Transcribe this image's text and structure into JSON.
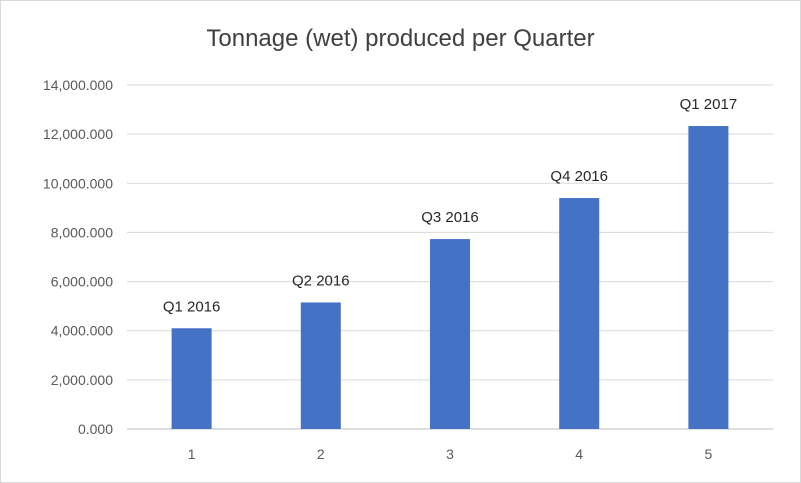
{
  "chart_data": {
    "type": "bar",
    "title": "Tonnage (wet) produced per Quarter",
    "xlabel": "",
    "ylabel": "",
    "categories": [
      "1",
      "2",
      "3",
      "4",
      "5"
    ],
    "values": [
      4100,
      5150,
      7730,
      9400,
      12330
    ],
    "data_labels": [
      "Q1 2016",
      "Q2 2016",
      "Q3 2016",
      "Q4 2016",
      "Q1 2017"
    ],
    "ylim": [
      0,
      14000
    ],
    "y_ticks": [
      0,
      2000,
      4000,
      6000,
      8000,
      10000,
      12000,
      14000
    ],
    "y_tick_labels": [
      "0.000",
      "2,000.000",
      "4,000.000",
      "6,000.000",
      "8,000.000",
      "10,000.000",
      "12,000.000",
      "14,000.000"
    ],
    "grid": true,
    "legend": "none",
    "colors": {
      "bar": "#4472c4",
      "grid": "#d9d9d9",
      "axis": "#bfbfbf"
    }
  }
}
